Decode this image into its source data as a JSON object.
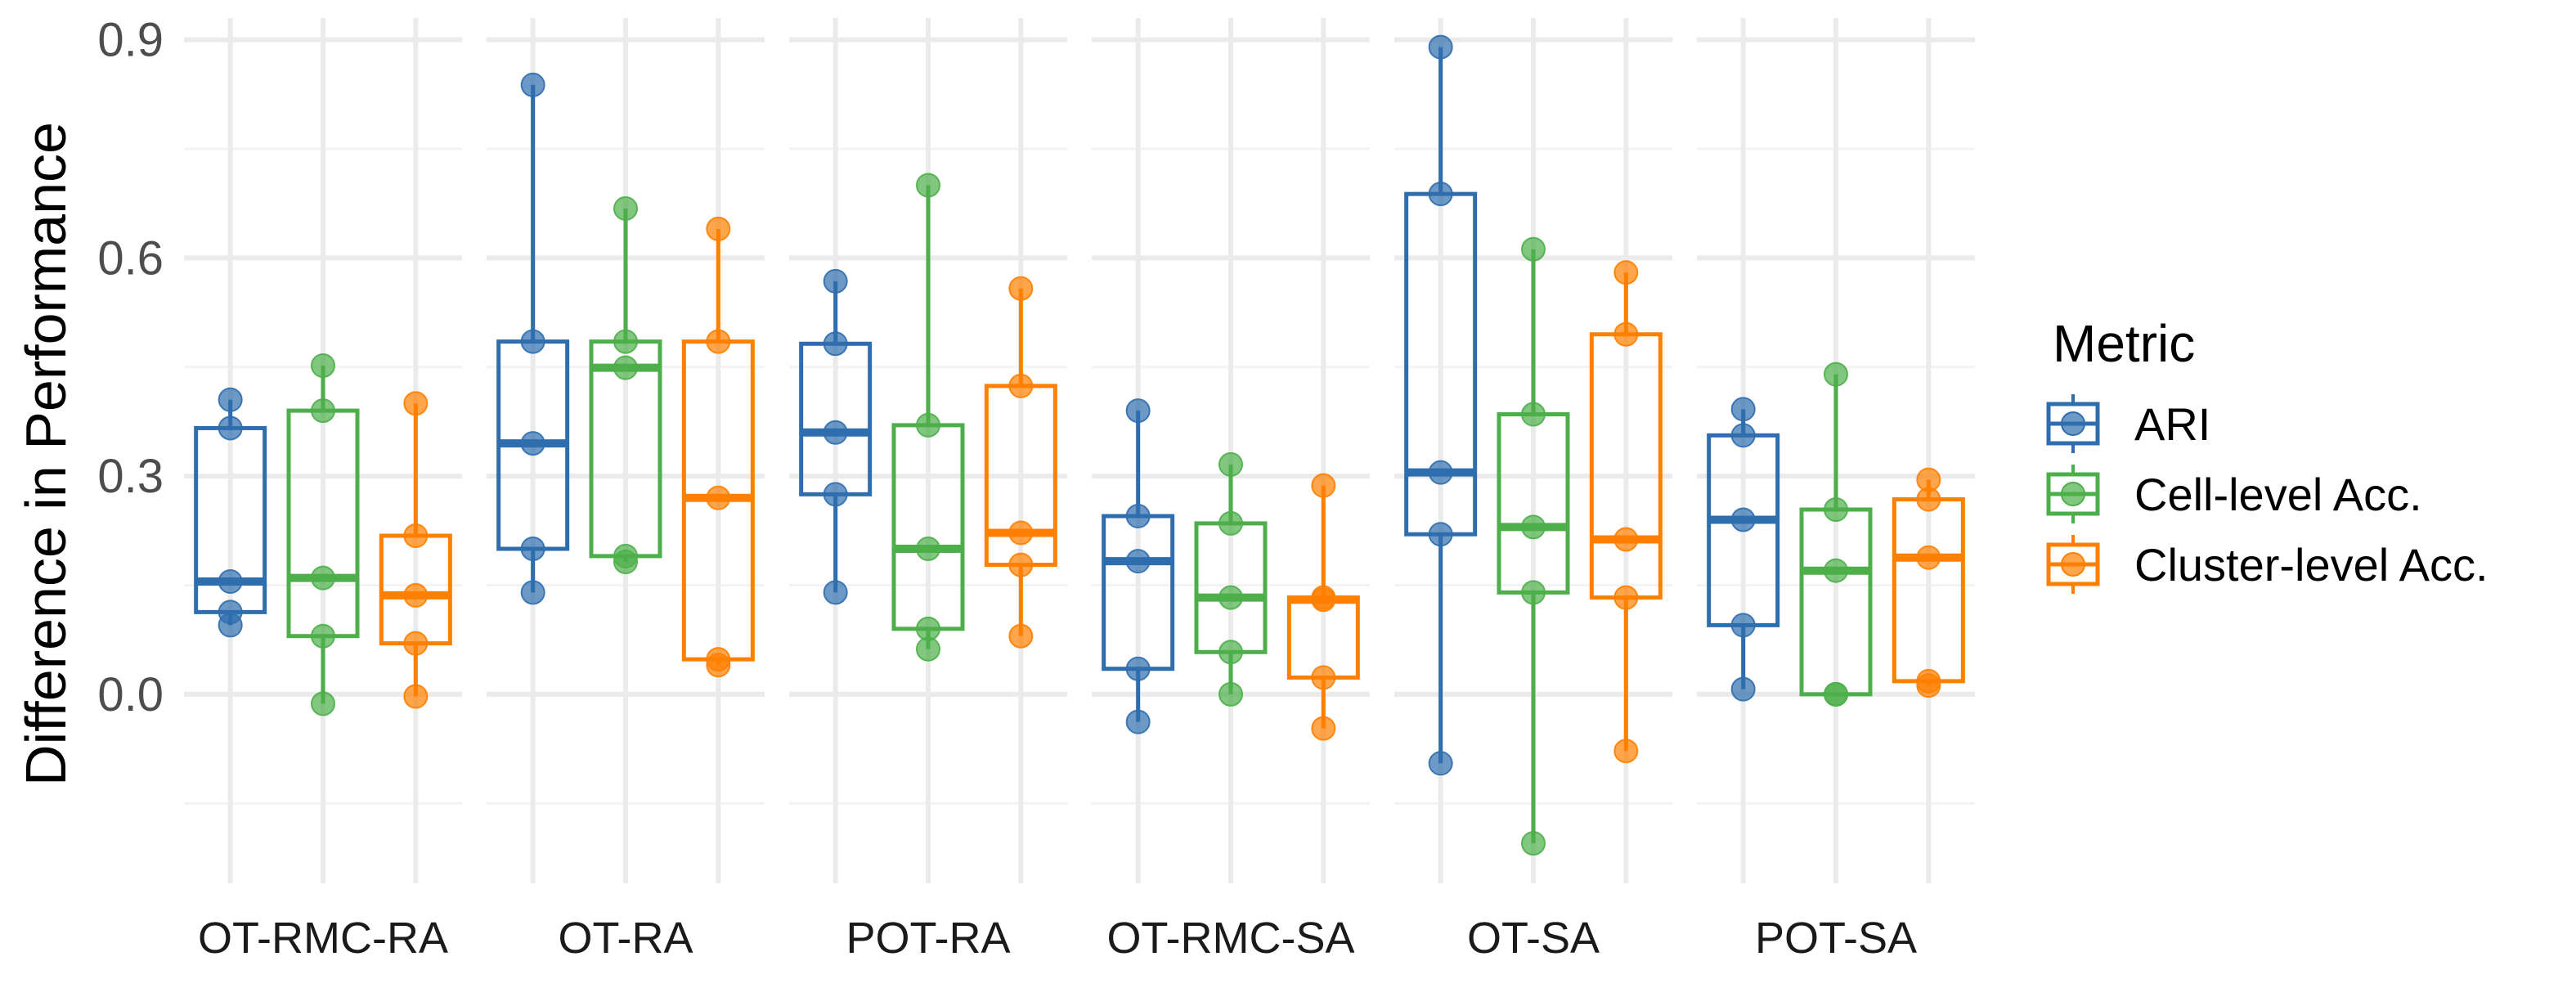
{
  "chart_data": {
    "type": "boxplot",
    "title": "",
    "xlabel": "",
    "ylabel": "Difference in Performance",
    "ylim": [
      -0.26,
      0.93
    ],
    "y_ticks": [
      0.0,
      0.3,
      0.6,
      0.9
    ],
    "y_tick_labels": [
      "0.0",
      "0.3",
      "0.6",
      "0.9"
    ],
    "legend": {
      "title": "Metric",
      "position": "right",
      "entries": [
        {
          "name": "ARI",
          "color": "#2f6eae"
        },
        {
          "name": "Cell-level Acc.",
          "color": "#4daf4a"
        },
        {
          "name": "Cluster-level Acc.",
          "color": "#ff7f00"
        }
      ]
    },
    "categories": [
      "OT-RMC-RA",
      "OT-RA",
      "POT-RA",
      "OT-RMC-SA",
      "OT-SA",
      "POT-SA"
    ],
    "series": [
      {
        "name": "ARI",
        "color": "#2f6eae",
        "boxes": [
          {
            "lower": 0.095,
            "q1": 0.113,
            "median": 0.155,
            "q3": 0.366,
            "upper": 0.405,
            "points": [
              0.405,
              0.366,
              0.155,
              0.113,
              0.095
            ]
          },
          {
            "lower": 0.14,
            "q1": 0.2,
            "median": 0.345,
            "q3": 0.485,
            "upper": 0.838,
            "points": [
              0.838,
              0.485,
              0.345,
              0.2,
              0.14
            ]
          },
          {
            "lower": 0.14,
            "q1": 0.275,
            "median": 0.36,
            "q3": 0.482,
            "upper": 0.568,
            "points": [
              0.568,
              0.482,
              0.36,
              0.275,
              0.14
            ]
          },
          {
            "lower": -0.038,
            "q1": 0.035,
            "median": 0.183,
            "q3": 0.245,
            "upper": 0.39,
            "points": [
              0.39,
              0.245,
              0.183,
              0.035,
              -0.038
            ]
          },
          {
            "lower": -0.095,
            "q1": 0.22,
            "median": 0.305,
            "q3": 0.688,
            "upper": 0.89,
            "points": [
              0.89,
              0.688,
              0.305,
              0.22,
              -0.095
            ]
          },
          {
            "lower": 0.007,
            "q1": 0.095,
            "median": 0.24,
            "q3": 0.356,
            "upper": 0.392,
            "points": [
              0.392,
              0.356,
              0.24,
              0.095,
              0.007
            ]
          }
        ]
      },
      {
        "name": "Cell-level Acc.",
        "color": "#4daf4a",
        "boxes": [
          {
            "lower": -0.013,
            "q1": 0.08,
            "median": 0.16,
            "q3": 0.39,
            "upper": 0.452,
            "points": [
              0.452,
              0.39,
              0.16,
              0.08,
              -0.013
            ]
          },
          {
            "lower": 0.182,
            "q1": 0.19,
            "median": 0.449,
            "q3": 0.485,
            "upper": 0.668,
            "points": [
              0.668,
              0.485,
              0.449,
              0.19,
              0.182
            ]
          },
          {
            "lower": 0.062,
            "q1": 0.09,
            "median": 0.2,
            "q3": 0.37,
            "upper": 0.7,
            "points": [
              0.7,
              0.37,
              0.2,
              0.09,
              0.062
            ]
          },
          {
            "lower": 0.0,
            "q1": 0.058,
            "median": 0.133,
            "q3": 0.235,
            "upper": 0.316,
            "points": [
              0.316,
              0.235,
              0.133,
              0.058,
              0.0
            ]
          },
          {
            "lower": -0.205,
            "q1": 0.14,
            "median": 0.23,
            "q3": 0.385,
            "upper": 0.612,
            "points": [
              0.612,
              0.385,
              0.23,
              0.14,
              -0.205
            ]
          },
          {
            "lower": 0.0,
            "q1": 0.0,
            "median": 0.17,
            "q3": 0.254,
            "upper": 0.44,
            "points": [
              0.44,
              0.254,
              0.17,
              0.0,
              0.0
            ]
          }
        ]
      },
      {
        "name": "Cluster-level Acc.",
        "color": "#ff7f00",
        "boxes": [
          {
            "lower": -0.003,
            "q1": 0.07,
            "median": 0.136,
            "q3": 0.218,
            "upper": 0.4,
            "points": [
              0.4,
              0.218,
              0.136,
              0.07,
              -0.003
            ]
          },
          {
            "lower": 0.04,
            "q1": 0.048,
            "median": 0.27,
            "q3": 0.485,
            "upper": 0.64,
            "points": [
              0.64,
              0.485,
              0.27,
              0.048,
              0.04
            ]
          },
          {
            "lower": 0.08,
            "q1": 0.178,
            "median": 0.222,
            "q3": 0.424,
            "upper": 0.558,
            "points": [
              0.558,
              0.424,
              0.222,
              0.178,
              0.08
            ]
          },
          {
            "lower": -0.047,
            "q1": 0.023,
            "median": 0.13,
            "q3": 0.133,
            "upper": 0.287,
            "points": [
              0.287,
              0.133,
              0.13,
              0.023,
              -0.047
            ]
          },
          {
            "lower": -0.078,
            "q1": 0.133,
            "median": 0.213,
            "q3": 0.495,
            "upper": 0.58,
            "points": [
              0.58,
              0.495,
              0.213,
              0.133,
              -0.078
            ]
          },
          {
            "lower": 0.012,
            "q1": 0.018,
            "median": 0.188,
            "q3": 0.268,
            "upper": 0.295,
            "points": [
              0.295,
              0.268,
              0.188,
              0.018,
              0.012
            ]
          }
        ]
      }
    ]
  }
}
